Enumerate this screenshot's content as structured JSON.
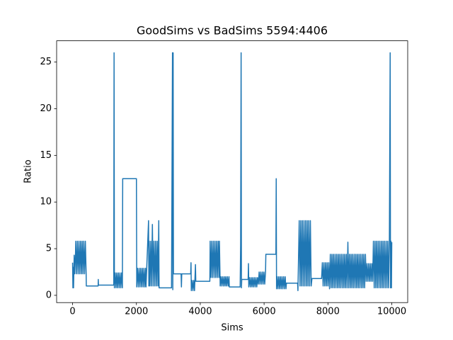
{
  "chart_data": {
    "type": "line",
    "title": "GoodSims vs BadSims 5594:4406",
    "xlabel": "Sims",
    "ylabel": "Ratio",
    "color": "#1f77b4",
    "xlim": [
      -500,
      10499
    ],
    "ylim": [
      -0.78,
      27.28
    ],
    "xticks": [
      0,
      2000,
      4000,
      6000,
      8000,
      10000
    ],
    "yticks": [
      0,
      5,
      10,
      15,
      20,
      25
    ],
    "x": [
      0,
      10,
      20,
      30,
      50,
      70,
      90,
      100,
      125,
      150,
      175,
      200,
      225,
      250,
      275,
      300,
      325,
      350,
      375,
      400,
      425,
      430,
      800,
      805,
      810,
      1290,
      1300,
      1310,
      1335,
      1360,
      1385,
      1410,
      1435,
      1460,
      1485,
      1510,
      1535,
      1560,
      1570,
      2000,
      2010,
      2035,
      2060,
      2085,
      2110,
      2135,
      2160,
      2185,
      2210,
      2235,
      2260,
      2285,
      2300,
      2380,
      2390,
      2400,
      2425,
      2450,
      2475,
      2500,
      2525,
      2550,
      2575,
      2600,
      2625,
      2650,
      2675,
      2700,
      2710,
      3100,
      3130,
      3140,
      3150,
      3160,
      3400,
      3410,
      3420,
      3700,
      3710,
      3720,
      3745,
      3770,
      3795,
      3820,
      3850,
      3860,
      4300,
      4310,
      4335,
      4360,
      4385,
      4410,
      4435,
      4460,
      4485,
      4510,
      4535,
      4560,
      4585,
      4600,
      4625,
      4650,
      4675,
      4700,
      4725,
      4750,
      4775,
      4800,
      4825,
      4850,
      4875,
      4900,
      4910,
      5250,
      5265,
      5280,
      5290,
      5300,
      5500,
      5510,
      5520,
      5545,
      5570,
      5595,
      5620,
      5645,
      5670,
      5695,
      5720,
      5745,
      5770,
      5795,
      5820,
      5845,
      5870,
      5895,
      5920,
      5945,
      5970,
      5995,
      6020,
      6045,
      6055,
      6370,
      6380,
      6390,
      6410,
      6435,
      6460,
      6485,
      6510,
      6535,
      6560,
      6585,
      6610,
      6635,
      6660,
      6685,
      6700,
      7050,
      7060,
      7100,
      7125,
      7150,
      7175,
      7200,
      7225,
      7250,
      7275,
      7300,
      7325,
      7350,
      7375,
      7400,
      7425,
      7450,
      7475,
      7500,
      7800,
      7825,
      7850,
      7875,
      7900,
      7925,
      7950,
      7975,
      8000,
      8025,
      8050,
      8075,
      8100,
      8125,
      8150,
      8175,
      8200,
      8225,
      8250,
      8275,
      8300,
      8325,
      8350,
      8375,
      8400,
      8425,
      8450,
      8475,
      8500,
      8525,
      8550,
      8575,
      8600,
      8625,
      8650,
      8675,
      8700,
      8725,
      8750,
      8775,
      8800,
      8825,
      8850,
      8875,
      8900,
      8925,
      8950,
      8975,
      9000,
      9025,
      9050,
      9075,
      9100,
      9125,
      9150,
      9175,
      9200,
      9225,
      9250,
      9275,
      9300,
      9325,
      9350,
      9375,
      9400,
      9425,
      9450,
      9475,
      9500,
      9525,
      9550,
      9575,
      9600,
      9625,
      9650,
      9675,
      9700,
      9725,
      9750,
      9775,
      9800,
      9825,
      9850,
      9875,
      9900,
      9925,
      9950,
      9960,
      9975,
      9990,
      10000
    ],
    "values": [
      3.5,
      0.8,
      3.0,
      0.8,
      4.3,
      2.3,
      4.3,
      5.8,
      2.3,
      5.8,
      2.3,
      5.8,
      2.3,
      5.8,
      2.3,
      5.8,
      2.3,
      5.8,
      2.3,
      5.8,
      2.3,
      1.0,
      1.0,
      1.7,
      1.1,
      1.1,
      26,
      0.8,
      2.4,
      0.8,
      2.4,
      0.8,
      2.4,
      0.8,
      2.4,
      0.8,
      2.4,
      0.8,
      12.5,
      12.5,
      0.9,
      2.9,
      0.9,
      2.9,
      0.9,
      2.9,
      0.9,
      2.9,
      0.9,
      2.9,
      0.9,
      2.9,
      0.9,
      8.0,
      1.0,
      5.8,
      1.0,
      5.8,
      1.0,
      7.6,
      1.0,
      5.8,
      1.0,
      5.8,
      1.0,
      5.8,
      1.0,
      8.0,
      0.8,
      0.8,
      26,
      0.6,
      26,
      2.3,
      2.3,
      0.9,
      2.3,
      2.3,
      3.5,
      0.5,
      1.6,
      0.5,
      1.6,
      0.5,
      3.3,
      1.5,
      1.5,
      5.8,
      1.9,
      5.8,
      1.9,
      5.8,
      1.9,
      5.8,
      1.9,
      5.8,
      1.9,
      5.8,
      1.9,
      5.8,
      1.0,
      2.0,
      1.0,
      2.0,
      1.0,
      2.0,
      1.0,
      2.0,
      1.0,
      2.0,
      1.0,
      2.0,
      0.9,
      0.9,
      5.5,
      26,
      0.8,
      1.7,
      1.7,
      3.4,
      0.9,
      1.9,
      0.9,
      1.9,
      0.9,
      1.9,
      0.9,
      1.9,
      0.9,
      1.9,
      0.9,
      1.9,
      1.2,
      2.5,
      1.2,
      2.5,
      1.2,
      2.5,
      1.2,
      2.5,
      1.2,
      2.5,
      4.4,
      4.4,
      12.5,
      0.7,
      2.0,
      0.7,
      2.0,
      0.7,
      2.0,
      0.7,
      2.0,
      0.7,
      2.0,
      0.7,
      2.0,
      0.7,
      1.3,
      1.3,
      0.5,
      8.0,
      1.0,
      8.0,
      1.0,
      8.0,
      1.0,
      8.0,
      1.0,
      8.0,
      1.0,
      8.0,
      1.0,
      8.0,
      1.0,
      8.0,
      1.0,
      1.8,
      1.8,
      3.5,
      1.0,
      3.5,
      1.0,
      3.5,
      1.0,
      3.5,
      1.0,
      3.5,
      0.7,
      4.4,
      0.8,
      4.4,
      0.8,
      4.4,
      0.8,
      4.4,
      0.8,
      4.4,
      0.8,
      4.4,
      0.8,
      4.4,
      0.8,
      4.4,
      0.8,
      4.4,
      0.8,
      4.4,
      0.8,
      4.4,
      0.8,
      5.7,
      0.8,
      4.4,
      0.8,
      4.4,
      0.8,
      4.4,
      0.8,
      4.4,
      0.8,
      4.4,
      0.8,
      4.4,
      0.8,
      4.4,
      0.8,
      4.4,
      0.8,
      4.4,
      0.8,
      4.4,
      0.8,
      4.4,
      1.5,
      3.4,
      1.5,
      3.4,
      1.5,
      3.4,
      1.5,
      3.4,
      1.5,
      5.8,
      0.8,
      5.8,
      0.8,
      5.8,
      0.8,
      5.8,
      0.8,
      5.8,
      0.8,
      5.8,
      0.8,
      5.8,
      0.8,
      5.8,
      0.8,
      5.8,
      0.8,
      5.8,
      0.8,
      5.8,
      26,
      0.8,
      5.8,
      0.8,
      5.7
    ]
  }
}
